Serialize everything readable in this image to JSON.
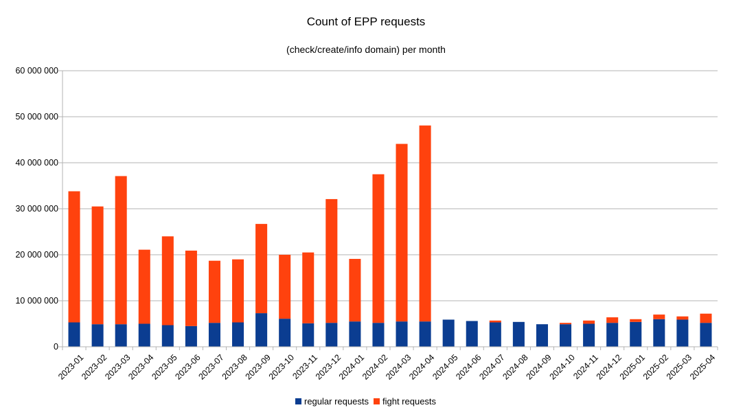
{
  "chart_data": {
    "type": "bar",
    "stacked": true,
    "title": "Count of EPP requests",
    "subtitle": "(check/create/info domain) per month",
    "xlabel": "",
    "ylabel": "",
    "ylim": [
      0,
      60000000
    ],
    "yticks": [
      0,
      10000000,
      20000000,
      30000000,
      40000000,
      50000000,
      60000000
    ],
    "ytick_labels": [
      "0",
      "10 000 000",
      "20 000 000",
      "30 000 000",
      "40 000 000",
      "50 000 000",
      "60 000 000"
    ],
    "grid": "horizontal",
    "legend_position": "bottom",
    "categories": [
      "2023-01",
      "2023-02",
      "2023-03",
      "2023-04",
      "2023-05",
      "2023-06",
      "2023-07",
      "2023-08",
      "2023-09",
      "2023-10",
      "2023-11",
      "2023-12",
      "2024-01",
      "2024-02",
      "2024-03",
      "2024-04",
      "2024-05",
      "2024-06",
      "2024-07",
      "2024-08",
      "2024-09",
      "2024-10",
      "2024-11",
      "2024-12",
      "2025-01",
      "2025-02",
      "2025-03",
      "2025-04"
    ],
    "series": [
      {
        "name": "regular requests",
        "color": "#0b3d91",
        "values": [
          5300000,
          4900000,
          4900000,
          5000000,
          4700000,
          4500000,
          5200000,
          5300000,
          7300000,
          6100000,
          5100000,
          5200000,
          5500000,
          5200000,
          5500000,
          5500000,
          5900000,
          5600000,
          5300000,
          5400000,
          4900000,
          4900000,
          5000000,
          5200000,
          5400000,
          6000000,
          5900000,
          5200000
        ]
      },
      {
        "name": "fight requests",
        "color": "#ff420e",
        "values": [
          28500000,
          25600000,
          32200000,
          16100000,
          19300000,
          16400000,
          13500000,
          13700000,
          19400000,
          13900000,
          15400000,
          26900000,
          13600000,
          32300000,
          38600000,
          42600000,
          0,
          0,
          400000,
          0,
          0,
          300000,
          700000,
          1200000,
          600000,
          1000000,
          700000,
          2000000
        ]
      }
    ]
  }
}
